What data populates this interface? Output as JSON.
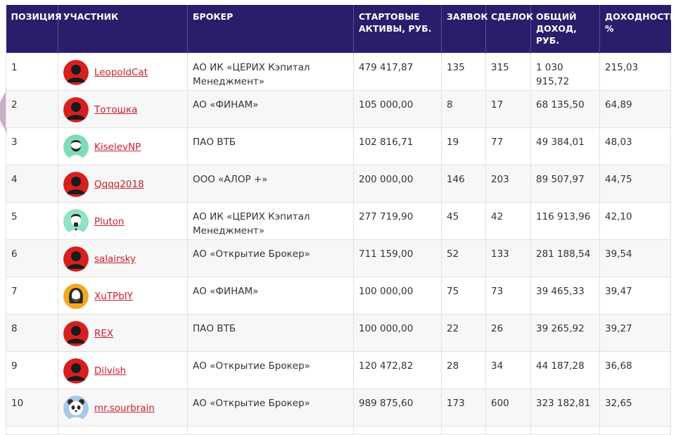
{
  "colors": {
    "header_bg": "#2b1d6b",
    "link": "#cc1e2e",
    "avatar_default": "#d71f1f"
  },
  "headers": {
    "position": "ПОЗИЦИЯ",
    "participant": "УЧАСТНИК",
    "broker": "БРОКЕР",
    "start_assets": "СТАРТОВЫЕ АКТИВЫ, РУБ.",
    "orders": "ЗАЯВОК",
    "deals": "СДЕЛОК",
    "total_income": "ОБЩИЙ ДОХОД, РУБ.",
    "yield": "ДОХОДНОСТЬ, %"
  },
  "rows": [
    {
      "position": "1",
      "name": "LeopoldCat",
      "avatar": "default-avatar-icon",
      "broker": "АО ИК «ЦЕРИХ Кэпитал Менеджмент»",
      "start_assets": "479 417,87",
      "orders": "135",
      "deals": "315",
      "income": "1 030 915,72",
      "yield": "215,03"
    },
    {
      "position": "2",
      "name": "Тотошка",
      "avatar": "default-avatar-icon",
      "broker": "АО «ФИНАМ»",
      "start_assets": "105 000,00",
      "orders": "8",
      "deals": "17",
      "income": "68 135,50",
      "yield": "64,89"
    },
    {
      "position": "3",
      "name": "KiselevNP",
      "avatar": "bearded-man-avatar-icon",
      "broker": "ПАО ВТБ",
      "start_assets": "102 816,71",
      "orders": "19",
      "deals": "77",
      "income": "49 384,01",
      "yield": "48,03"
    },
    {
      "position": "4",
      "name": "Qqqq2018",
      "avatar": "default-avatar-icon",
      "broker": "ООО «АЛОР +»",
      "start_assets": "200 000,00",
      "orders": "146",
      "deals": "203",
      "income": "89 507,97",
      "yield": "44,75"
    },
    {
      "position": "5",
      "name": "Pluton",
      "avatar": "goatee-man-avatar-icon",
      "broker": "АО ИК «ЦЕРИХ Кэпитал Менеджмент»",
      "start_assets": "277 719,90",
      "orders": "45",
      "deals": "42",
      "income": "116 913,96",
      "yield": "42,10"
    },
    {
      "position": "6",
      "name": "salairsky",
      "avatar": "default-avatar-icon",
      "broker": "АО «Открытие Брокер»",
      "start_assets": "711 159,00",
      "orders": "52",
      "deals": "133",
      "income": "281 188,54",
      "yield": "39,54"
    },
    {
      "position": "7",
      "name": "XuTPbIY",
      "avatar": "long-hair-avatar-icon",
      "broker": "АО «ФИНАМ»",
      "start_assets": "100 000,00",
      "orders": "75",
      "deals": "73",
      "income": "39 465,33",
      "yield": "39,47"
    },
    {
      "position": "8",
      "name": "REX",
      "avatar": "default-avatar-icon",
      "broker": "ПАО ВТБ",
      "start_assets": "100 000,00",
      "orders": "22",
      "deals": "26",
      "income": "39 265,92",
      "yield": "39,27"
    },
    {
      "position": "9",
      "name": "Dilvish",
      "avatar": "default-avatar-icon",
      "broker": "АО «Открытие Брокер»",
      "start_assets": "120 472,82",
      "orders": "28",
      "deals": "34",
      "income": "44 187,28",
      "yield": "36,68"
    },
    {
      "position": "10",
      "name": "mr.sourbrain",
      "avatar": "panda-avatar-icon",
      "broker": "АО «Открытие Брокер»",
      "start_assets": "989 875,60",
      "orders": "173",
      "deals": "600",
      "income": "323 182,81",
      "yield": "32,65"
    }
  ]
}
